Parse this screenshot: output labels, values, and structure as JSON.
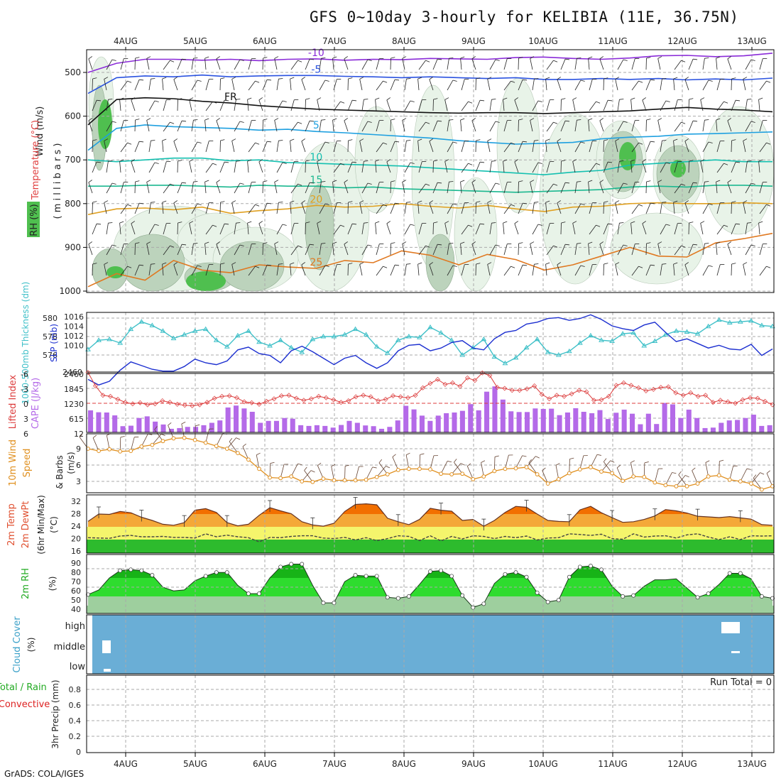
{
  "title": "GFS 0~10day 3-hourly for KELIBIA (11E, 36.75N)",
  "credit": "GrADS: COLA/IGES",
  "chart_data": [
    {
      "type": "line",
      "panel": "upper-air",
      "labels": {
        "l1": "Wind (m/s)",
        "l2": "Temperature (°C)",
        "l3": "RH (%)",
        "l4": "( m i l l i b a r s )"
      },
      "colors": {
        "rh1": "#e8f3e8",
        "rh2": "#bcd3bc",
        "rh3": "#8faa8f",
        "rh4": "#4fbf4f"
      },
      "x_labels": [
        "4AUG",
        "5AUG",
        "6AUG",
        "7AUG",
        "8AUG",
        "9AUG",
        "10AUG",
        "11AUG",
        "12AUG",
        "13AUG"
      ],
      "y_ticks": [
        500,
        600,
        700,
        800,
        900,
        1000
      ],
      "ylim": [
        450,
        1000
      ],
      "isotherms": [
        {
          "label": "-10",
          "color": "#8a2bd8",
          "values": [
            500,
            479,
            470,
            470,
            472,
            470,
            473,
            470,
            469,
            472,
            470,
            471,
            468,
            469,
            470,
            466,
            465,
            468,
            470,
            467,
            462,
            461,
            464,
            462,
            456
          ]
        },
        {
          "label": "-5",
          "color": "#2a52e0",
          "values": [
            548,
            512,
            508,
            510,
            506,
            510,
            508,
            507,
            507,
            509,
            510,
            512,
            510,
            512,
            514,
            512,
            516,
            516,
            514,
            516,
            514,
            517,
            515,
            517,
            513
          ]
        },
        {
          "label": "FR",
          "color": "#111111",
          "values": [
            620,
            562,
            558,
            560,
            566,
            570,
            576,
            580,
            584,
            586,
            588,
            590,
            592,
            593,
            592,
            592,
            594,
            592,
            590,
            588,
            584,
            580,
            584,
            586,
            590
          ]
        },
        {
          "label": "5",
          "color": "#1ea0e0",
          "values": [
            678,
            628,
            620,
            624,
            626,
            628,
            632,
            630,
            635,
            638,
            642,
            646,
            650,
            656,
            660,
            664,
            662,
            660,
            652,
            648,
            646,
            641,
            640,
            638,
            636
          ]
        },
        {
          "label": "10",
          "color": "#14c0b0",
          "values": [
            700,
            704,
            700,
            696,
            696,
            702,
            700,
            706,
            708,
            710,
            712,
            714,
            718,
            722,
            726,
            730,
            734,
            728,
            724,
            712,
            708,
            704,
            700,
            704,
            704
          ]
        },
        {
          "label": "15",
          "color": "#1cb890",
          "values": [
            760,
            760,
            758,
            758,
            760,
            762,
            758,
            760,
            760,
            764,
            762,
            766,
            768,
            770,
            772,
            774,
            772,
            770,
            768,
            762,
            760,
            762,
            758,
            758,
            760
          ]
        },
        {
          "label": "20",
          "color": "#e0a020",
          "values": [
            825,
            812,
            810,
            814,
            808,
            822,
            816,
            812,
            804,
            808,
            806,
            800,
            806,
            810,
            804,
            812,
            818,
            808,
            806,
            800,
            798,
            800,
            800,
            798,
            800
          ]
        },
        {
          "label": "25",
          "color": "#e07820",
          "values": [
            990,
            960,
            975,
            930,
            952,
            958,
            940,
            945,
            948,
            930,
            935,
            908,
            918,
            940,
            916,
            928,
            952,
            940,
            920,
            900,
            920,
            922,
            890,
            880,
            868
          ]
        }
      ]
    },
    {
      "type": "line",
      "panel": "thickness-slp",
      "labels": {
        "left": "1000-500mb Thickness (dm)",
        "right": "SLP (mb)"
      },
      "yticks_left": [
        "580",
        "578",
        "576"
      ],
      "yticks_right": [
        "1016",
        "1014",
        "1012",
        "1010"
      ],
      "colors": {
        "thickness": "#3fc0c8",
        "slp": "#1c2fd0"
      },
      "series": [
        {
          "name": "Thickness",
          "values": [
            576.6,
            577.6,
            577.7,
            577.3,
            578.8,
            579.6,
            579.2,
            578.6,
            577.8,
            578.2,
            578.6,
            578.8,
            577.6,
            576.9,
            578.1,
            578.6,
            577.4,
            577.0,
            577.6,
            576.8,
            576.3,
            577.7,
            578.0,
            578.0,
            578.2,
            578.8,
            578.2,
            576.9,
            576.2,
            577.6,
            578.0,
            577.9,
            579.0,
            578.4,
            577.6,
            576.0,
            576.8,
            577.7,
            575.8,
            575.1,
            575.7,
            576.8,
            577.7,
            576.3,
            576.0,
            576.4,
            577.3,
            578.1,
            577.6,
            577.5,
            578.3,
            578.4,
            577.0,
            577.5,
            578.2,
            578.6,
            578.5,
            578.3,
            579.1,
            579.8,
            579.5,
            579.6,
            579.7,
            579.2,
            579.1
          ]
        },
        {
          "name": "SLP",
          "values": [
            1009.2,
            1008.6,
            1009.0,
            1010.2,
            1011.1,
            1010.7,
            1010.3,
            1010.1,
            1010.1,
            1010.6,
            1011.4,
            1011.0,
            1010.8,
            1011.2,
            1012.4,
            1012.7,
            1012.0,
            1011.8,
            1011.0,
            1012.3,
            1012.8,
            1012.2,
            1011.5,
            1010.8,
            1011.5,
            1011.8,
            1011.0,
            1010.4,
            1011.0,
            1012.3,
            1012.9,
            1013.0,
            1012.3,
            1012.6,
            1013.2,
            1013.4,
            1012.6,
            1012.4,
            1013.6,
            1014.3,
            1014.5,
            1015.2,
            1015.4,
            1015.8,
            1015.9,
            1015.6,
            1015.8,
            1016.2,
            1015.7,
            1015.0,
            1014.7,
            1014.5,
            1015.1,
            1015.4,
            1014.3,
            1013.3,
            1013.6,
            1013.1,
            1012.6,
            1012.9,
            1012.5,
            1012.4,
            1013.0,
            1011.8,
            1012.5
          ]
        }
      ]
    },
    {
      "type": "bar",
      "panel": "lifted-cape",
      "labels": {
        "left": "Lifted Index",
        "right": "CAPE (J/kg)"
      },
      "yticks_left": [
        "-6",
        "-3",
        "0",
        "3",
        "6"
      ],
      "yticks_right": [
        "2460",
        "1845",
        "1230",
        "615",
        "12"
      ],
      "colors": {
        "lifted": "#dc3c3c",
        "cape": "#b46ae8"
      },
      "series": [
        {
          "name": "Lifted Index",
          "values": [
            -6.2,
            -3.5,
            -1.6,
            -1.4,
            -0.8,
            -0.2,
            0.1,
            -0.1,
            0.3,
            0.1,
            -0.5,
            -0.2,
            0.2,
            0.4,
            0.5,
            0.3,
            -0.2,
            -1.0,
            -1.4,
            -1.5,
            -1.1,
            -0.3,
            -0.1,
            0.2,
            -0.4,
            -0.9,
            -1.5,
            -1.6,
            -1.0,
            -0.6,
            -0.9,
            -1.4,
            -1.1,
            -0.7,
            -0.2,
            -0.5,
            -1.3,
            -1.6,
            -1.3,
            -0.5,
            -0.8,
            -1.5,
            -1.3,
            -1.1,
            -1.6,
            -3.1,
            -4.0,
            -4.8,
            -3.8,
            -4.1,
            -3.4,
            -5.1,
            -4.6,
            -6.1,
            -5.6,
            -3.2,
            -3.0,
            -2.6,
            -2.6,
            -2.9,
            -3.5,
            -1.8,
            -0.9,
            -1.6,
            -1.4,
            -1.9,
            -2.6,
            -2.3,
            -0.6,
            -0.7,
            -1.4,
            -3.6,
            -4.1,
            -3.6,
            -3.1,
            -2.5,
            -2.8,
            -3.2,
            -3.3,
            -2.1,
            -1.6,
            -2.1,
            -1.4,
            -1.6,
            -0.2,
            -0.6,
            -0.3,
            0.0,
            -0.7,
            -1.1,
            -1.0,
            -0.4,
            0.3
          ]
        },
        {
          "name": "CAPE",
          "values": [
            920,
            840,
            830,
            710,
            260,
            280,
            600,
            670,
            450,
            330,
            150,
            180,
            230,
            230,
            300,
            400,
            500,
            1040,
            1120,
            1000,
            860,
            400,
            480,
            480,
            600,
            570,
            300,
            270,
            300,
            270,
            200,
            310,
            480,
            400,
            290,
            260,
            150,
            230,
            500,
            1110,
            960,
            700,
            480,
            700,
            800,
            830,
            900,
            1180,
            920,
            1700,
            1920,
            1370,
            880,
            850,
            850,
            1000,
            980,
            990,
            720,
            830,
            1010,
            860,
            800,
            930,
            560,
            820,
            950,
            780,
            340,
            780,
            350,
            1230,
            1170,
            600,
            950,
            600,
            180,
            200,
            400,
            500,
            520,
            600,
            740,
            270,
            300
          ]
        }
      ]
    },
    {
      "type": "line",
      "panel": "wind10m",
      "labels": {
        "l1": "10m Wind",
        "l2": "Speed",
        "l3": "& Barbs",
        "l4": "(m/s)"
      },
      "yticks": [
        "9",
        "6",
        "3"
      ],
      "color": "#e09020",
      "series": [
        {
          "name": "10m Wind Speed",
          "values": [
            9.0,
            8.6,
            8.9,
            8.5,
            8.6,
            9.4,
            9.7,
            10.4,
            10.9,
            11.0,
            10.6,
            10.1,
            9.5,
            9.0,
            8.2,
            7.0,
            5.3,
            3.7,
            3.6,
            3.9,
            3.0,
            2.9,
            3.5,
            3.2,
            3.2,
            3.2,
            3.3,
            3.8,
            4.3,
            5.1,
            5.3,
            5.3,
            5.2,
            4.4,
            4.3,
            4.4,
            3.4,
            3.9,
            4.9,
            5.3,
            5.4,
            5.6,
            4.3,
            2.6,
            3.4,
            4.5,
            5.2,
            5.6,
            4.8,
            4.5,
            3.1,
            3.9,
            3.8,
            2.8,
            2.3,
            2.1,
            2.1,
            2.6,
            3.9,
            4.1,
            3.3,
            3.0,
            2.6,
            1.5,
            2.1
          ]
        }
      ]
    },
    {
      "type": "area",
      "panel": "temp2m",
      "labels": {
        "l1": "2m Temp",
        "l2": "2m DewPt",
        "l3": "(6hr Min/Max)",
        "l4": "(°C)"
      },
      "yticks": [
        "32",
        "28",
        "24",
        "20",
        "16"
      ],
      "colors": {
        "band1": "#2dbb2d",
        "band2": "#f5f56c",
        "band3": "#f4a838",
        "band4": "#f26f00",
        "line": "#444444"
      },
      "series": [
        {
          "name": "2m Temp",
          "values": [
            25.7,
            28.0,
            27.9,
            28.8,
            28.4,
            27.0,
            26.0,
            24.8,
            24.5,
            25.3,
            29.2,
            29.7,
            28.5,
            25.3,
            24.3,
            24.8,
            27.6,
            30.0,
            29.0,
            28.1,
            25.6,
            24.6,
            24.2,
            25.1,
            28.8,
            31.0,
            31.2,
            30.9,
            26.7,
            25.6,
            24.7,
            26.3,
            29.8,
            29.2,
            28.9,
            26.0,
            26.3,
            24.2,
            26.0,
            28.5,
            30.4,
            30.1,
            28.0,
            26.0,
            25.7,
            25.6,
            29.3,
            30.4,
            28.4,
            26.9,
            25.4,
            25.6,
            26.3,
            27.4,
            29.4,
            29.0,
            28.3,
            27.3,
            27.1,
            26.9,
            27.2,
            26.8,
            26.4,
            24.7,
            24.5
          ]
        },
        {
          "name": "2m DewPt",
          "values": [
            20.6,
            20.5,
            20.4,
            21.1,
            21.3,
            20.9,
            20.9,
            21.0,
            20.7,
            20.7,
            20.5,
            21.8,
            20.9,
            21.4,
            20.9,
            20.6,
            19.3,
            20.7,
            20.6,
            21.0,
            21.2,
            21.2,
            20.5,
            20.3,
            20.7,
            19.9,
            20.6,
            19.7,
            20.3,
            21.2,
            21.0,
            19.7,
            21.2,
            19.6,
            21.0,
            20.2,
            21.2,
            21.0,
            20.3,
            21.0,
            20.6,
            21.1,
            19.9,
            20.5,
            20.6,
            21.8,
            21.6,
            21.3,
            21.7,
            20.3,
            20.1,
            21.8,
            20.8,
            21.1,
            21.2,
            20.5,
            21.5,
            21.8,
            20.8,
            20.0,
            20.9,
            20.0,
            21.2,
            21.1,
            21.2
          ]
        }
      ]
    },
    {
      "type": "area",
      "panel": "rh2m",
      "labels": {
        "l1": "2m RH",
        "l2": "(%)"
      },
      "yticks": [
        "90",
        "80",
        "70",
        "60",
        "50",
        "40"
      ],
      "colors": {
        "fill1": "#9ecf9e",
        "fill2": "#2edc2e",
        "fill3": "#17b317"
      },
      "series": [
        {
          "name": "2m RH",
          "values": [
            52,
            57,
            70,
            78,
            79,
            78,
            73,
            60,
            56,
            57,
            67,
            72,
            76,
            76,
            62,
            53,
            53,
            70,
            82,
            85,
            85,
            62,
            43,
            43,
            66,
            73,
            72,
            72,
            49,
            48,
            50,
            63,
            77,
            78,
            72,
            51,
            38,
            42,
            64,
            74,
            76,
            71,
            54,
            44,
            46,
            71,
            82,
            83,
            79,
            61,
            50,
            51,
            61,
            68,
            68,
            69,
            59,
            49,
            53,
            63,
            75,
            75,
            69,
            50,
            48
          ]
        }
      ]
    },
    {
      "type": "area",
      "panel": "cloud",
      "labels": {
        "l1": "Cloud Cover",
        "l2": "(%)",
        "high": "high",
        "middle": "middle",
        "low": "low"
      },
      "color": "#6aaed6"
    },
    {
      "type": "bar",
      "panel": "precip",
      "labels": {
        "l1": "Total / Rain",
        "l2": "Convective",
        "l3": "3hr Precip (mm)",
        "run_total": "Run Total = 0"
      },
      "yticks": [
        "0.8",
        "0.6",
        "0.4",
        "0.2",
        "0"
      ],
      "colors": {
        "total": "#22aa22",
        "convective": "#dd2222"
      },
      "values": []
    }
  ]
}
